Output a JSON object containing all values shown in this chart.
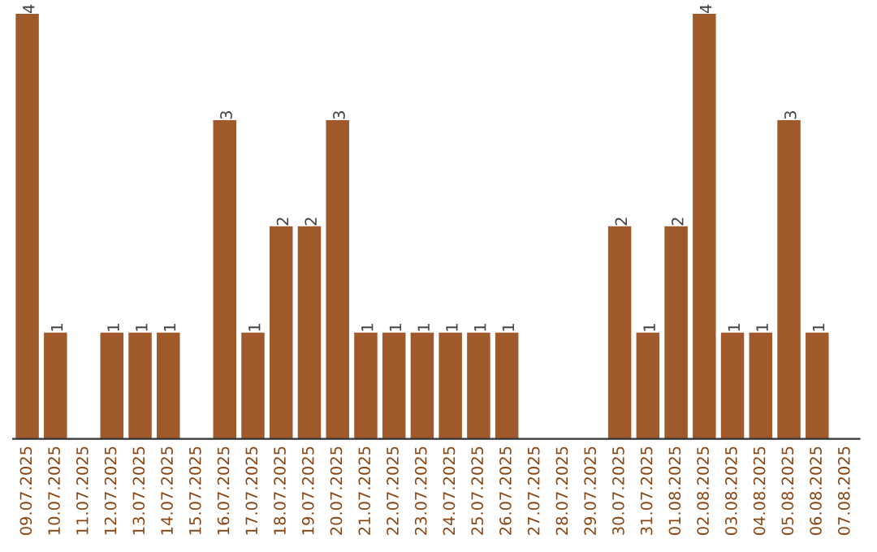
{
  "chart_data": {
    "type": "bar",
    "categories": [
      "09.07.2025",
      "10.07.2025",
      "11.07.2025",
      "12.07.2025",
      "13.07.2025",
      "14.07.2025",
      "15.07.2025",
      "16.07.2025",
      "17.07.2025",
      "18.07.2025",
      "19.07.2025",
      "20.07.2025",
      "21.07.2025",
      "22.07.2025",
      "23.07.2025",
      "24.07.2025",
      "25.07.2025",
      "26.07.2025",
      "27.07.2025",
      "28.07.2025",
      "29.07.2025",
      "30.07.2025",
      "31.07.2025",
      "01.08.2025",
      "02.08.2025",
      "03.08.2025",
      "04.08.2025",
      "05.08.2025",
      "06.08.2025",
      "07.08.2025"
    ],
    "values": [
      4,
      1,
      0,
      1,
      1,
      1,
      0,
      3,
      1,
      2,
      2,
      3,
      1,
      1,
      1,
      1,
      1,
      1,
      0,
      0,
      0,
      2,
      1,
      2,
      4,
      1,
      1,
      3,
      1,
      0
    ],
    "value_labels": [
      "4",
      "1",
      null,
      "1",
      "1",
      "1",
      null,
      "3",
      "1",
      "2",
      "2",
      "3",
      "1",
      "1",
      "1",
      "1",
      "1",
      "1",
      null,
      null,
      null,
      "2",
      "1",
      "2",
      "4",
      "1",
      "1",
      "3",
      "1",
      null
    ],
    "color": "#a0592a",
    "tick_labels": "x",
    "grid": false,
    "legend": false
  }
}
